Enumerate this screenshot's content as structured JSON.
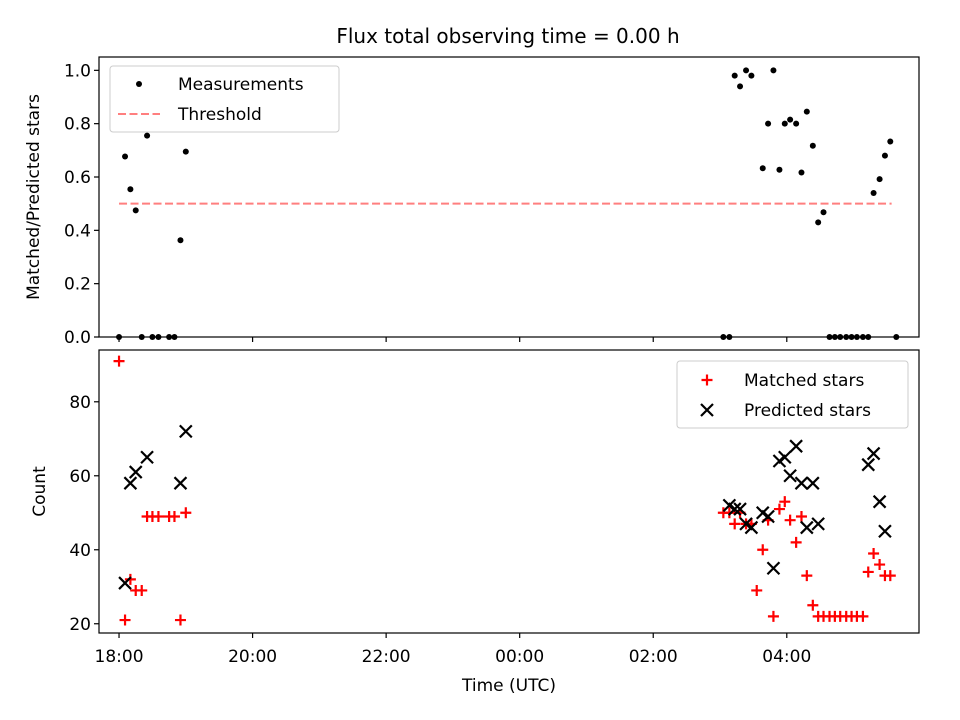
{
  "chart_data": [
    {
      "type": "scatter",
      "title": "Flux total observing time = 0.00 h",
      "xlabel": "",
      "ylabel": "Matched/Predicted stars",
      "xlim": [
        -0.3,
        11.98
      ],
      "ylim": [
        0,
        1.05
      ],
      "yticks": [
        0.0,
        0.2,
        0.4,
        0.6,
        0.8,
        1.0
      ],
      "ytick_labels": [
        "0.0",
        "0.2",
        "0.4",
        "0.6",
        "0.8",
        "1.0"
      ],
      "legend_position": "upper left",
      "legend": {
        "measurements": "Measurements",
        "threshold": "Threshold"
      },
      "colors": {
        "measurements": "#000000",
        "threshold": "#ff7f7f"
      },
      "threshold": {
        "value": 0.5,
        "x_range": [
          0.0,
          11.57
        ]
      },
      "series": [
        {
          "name": "Measurements",
          "points": [
            [
              0.0,
              0.0
            ],
            [
              0.09,
              0.677
            ],
            [
              0.17,
              0.554
            ],
            [
              0.25,
              0.475
            ],
            [
              0.34,
              0.0
            ],
            [
              0.42,
              0.755
            ],
            [
              0.5,
              0.0
            ],
            [
              0.59,
              0.0
            ],
            [
              0.75,
              0.0
            ],
            [
              0.83,
              0.0
            ],
            [
              0.92,
              0.363
            ],
            [
              1.0,
              0.695
            ],
            [
              9.05,
              0.0
            ],
            [
              9.14,
              0.0
            ],
            [
              9.22,
              0.98
            ],
            [
              9.3,
              0.94
            ],
            [
              9.39,
              1.0
            ],
            [
              9.47,
              0.98
            ],
            [
              9.64,
              0.633
            ],
            [
              9.72,
              0.8
            ],
            [
              9.8,
              1.0
            ],
            [
              9.89,
              0.627
            ],
            [
              9.97,
              0.8
            ],
            [
              10.05,
              0.815
            ],
            [
              10.14,
              0.8
            ],
            [
              10.22,
              0.617
            ],
            [
              10.3,
              0.845
            ],
            [
              10.39,
              0.717
            ],
            [
              10.47,
              0.43
            ],
            [
              10.55,
              0.468
            ],
            [
              10.64,
              0.0
            ],
            [
              10.72,
              0.0
            ],
            [
              10.8,
              0.0
            ],
            [
              10.89,
              0.0
            ],
            [
              10.97,
              0.0
            ],
            [
              11.05,
              0.0
            ],
            [
              11.14,
              0.0
            ],
            [
              11.22,
              0.0
            ],
            [
              11.3,
              0.54
            ],
            [
              11.39,
              0.592
            ],
            [
              11.47,
              0.68
            ],
            [
              11.55,
              0.733
            ],
            [
              11.64,
              0.0
            ]
          ]
        }
      ]
    },
    {
      "type": "scatter",
      "title": "",
      "xlabel": "Time (UTC)",
      "ylabel": "Count",
      "xlim": [
        -0.3,
        11.98
      ],
      "ylim": [
        17.5,
        94
      ],
      "yticks": [
        20,
        40,
        60,
        80
      ],
      "ytick_labels": [
        "20",
        "40",
        "60",
        "80"
      ],
      "xticks": [
        0,
        2,
        4,
        6,
        8,
        10,
        12
      ],
      "xtick_labels": [
        "18:00",
        "20:00",
        "22:00",
        "00:00",
        "02:00",
        "04:00",
        "06:00"
      ],
      "legend_position": "upper right",
      "colors": {
        "matched": "#ff0000",
        "predicted": "#000000"
      },
      "series": [
        {
          "name": "Matched stars",
          "points": [
            [
              0.0,
              91
            ],
            [
              0.09,
              21
            ],
            [
              0.17,
              32
            ],
            [
              0.25,
              29
            ],
            [
              0.34,
              29
            ],
            [
              0.42,
              49
            ],
            [
              0.5,
              49
            ],
            [
              0.59,
              49
            ],
            [
              0.75,
              49
            ],
            [
              0.83,
              49
            ],
            [
              0.92,
              21
            ],
            [
              1.0,
              50
            ],
            [
              9.05,
              50
            ],
            [
              9.14,
              50
            ],
            [
              9.22,
              47
            ],
            [
              9.3,
              50
            ],
            [
              9.39,
              47
            ],
            [
              9.47,
              47
            ],
            [
              9.55,
              29
            ],
            [
              9.64,
              40
            ],
            [
              9.72,
              48
            ],
            [
              9.8,
              22
            ],
            [
              9.89,
              51
            ],
            [
              9.97,
              53
            ],
            [
              10.05,
              48
            ],
            [
              10.14,
              42
            ],
            [
              10.22,
              49
            ],
            [
              10.3,
              33
            ],
            [
              10.39,
              25
            ],
            [
              10.47,
              22
            ],
            [
              10.55,
              22
            ],
            [
              10.64,
              22
            ],
            [
              10.72,
              22
            ],
            [
              10.8,
              22
            ],
            [
              10.89,
              22
            ],
            [
              10.97,
              22
            ],
            [
              11.05,
              22
            ],
            [
              11.14,
              22
            ],
            [
              11.22,
              34
            ],
            [
              11.3,
              39
            ],
            [
              11.39,
              36
            ],
            [
              11.47,
              33
            ],
            [
              11.55,
              33
            ]
          ]
        },
        {
          "name": "Predicted stars",
          "points": [
            [
              0.09,
              31
            ],
            [
              0.17,
              58
            ],
            [
              0.25,
              61
            ],
            [
              0.42,
              65
            ],
            [
              0.92,
              58
            ],
            [
              1.0,
              72
            ],
            [
              9.14,
              52
            ],
            [
              9.22,
              51
            ],
            [
              9.3,
              51
            ],
            [
              9.39,
              47
            ],
            [
              9.47,
              46
            ],
            [
              9.64,
              50
            ],
            [
              9.72,
              49
            ],
            [
              9.8,
              35
            ],
            [
              9.89,
              64
            ],
            [
              9.97,
              65
            ],
            [
              10.05,
              60
            ],
            [
              10.14,
              68
            ],
            [
              10.22,
              58
            ],
            [
              10.3,
              46
            ],
            [
              10.39,
              58
            ],
            [
              10.47,
              47
            ],
            [
              11.22,
              63
            ],
            [
              11.3,
              66
            ],
            [
              11.39,
              53
            ],
            [
              11.47,
              45
            ]
          ]
        }
      ]
    }
  ]
}
